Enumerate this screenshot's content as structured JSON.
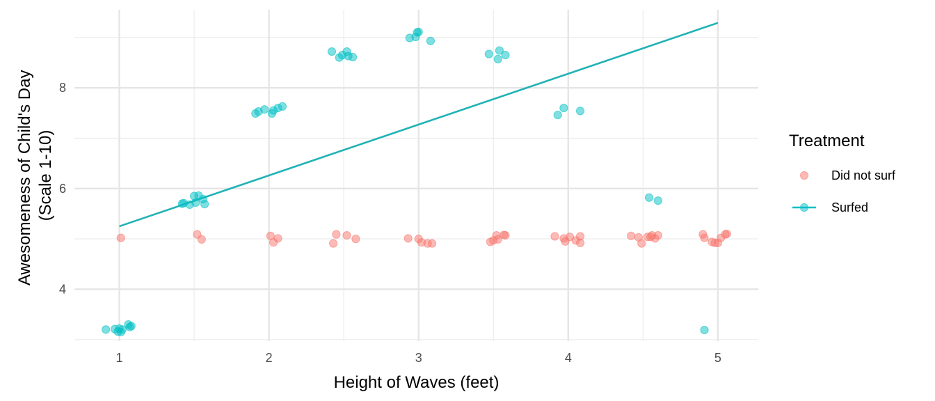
{
  "chart_data": {
    "type": "scatter",
    "xlabel": "Height of Waves (feet)",
    "ylabel": [
      "Awesomeness of Child's Day",
      "(Scale 1-10)"
    ],
    "xlim": [
      0.7,
      5.27
    ],
    "ylim": [
      2.97,
      9.55
    ],
    "x_ticks": [
      1,
      2,
      3,
      4,
      5
    ],
    "x_tick_labels": [
      "1",
      "2",
      "3",
      "4",
      "5"
    ],
    "y_ticks": [
      4,
      6,
      8
    ],
    "y_tick_labels": [
      "4",
      "6",
      "8"
    ],
    "grid": true,
    "legend": {
      "title": "Treatment",
      "position": "right",
      "entries": [
        {
          "label": "Did not surf",
          "color": "#F8766D",
          "marker": "point"
        },
        {
          "label": "Surfed",
          "color": "#00BFC4",
          "marker": "point+line"
        }
      ]
    },
    "series": [
      {
        "name": "Did not surf",
        "color": "#F8766D",
        "points": [
          [
            1.01,
            5.02
          ],
          [
            1.52,
            5.09
          ],
          [
            1.55,
            4.99
          ],
          [
            2.01,
            5.06
          ],
          [
            2.03,
            4.93
          ],
          [
            2.06,
            5.01
          ],
          [
            2.43,
            4.91
          ],
          [
            2.45,
            5.09
          ],
          [
            2.52,
            5.07
          ],
          [
            2.58,
            5.0
          ],
          [
            2.93,
            5.01
          ],
          [
            3.0,
            5.0
          ],
          [
            3.02,
            4.93
          ],
          [
            3.06,
            4.91
          ],
          [
            3.09,
            4.91
          ],
          [
            3.48,
            4.94
          ],
          [
            3.5,
            4.97
          ],
          [
            3.52,
            5.07
          ],
          [
            3.53,
            4.99
          ],
          [
            3.57,
            5.08
          ],
          [
            3.58,
            5.07
          ],
          [
            3.91,
            5.05
          ],
          [
            3.97,
            5.01
          ],
          [
            3.98,
            4.95
          ],
          [
            4.01,
            5.04
          ],
          [
            4.05,
            4.97
          ],
          [
            4.08,
            4.92
          ],
          [
            4.08,
            5.05
          ],
          [
            4.42,
            5.06
          ],
          [
            4.47,
            5.03
          ],
          [
            4.49,
            4.91
          ],
          [
            4.53,
            5.04
          ],
          [
            4.55,
            5.04
          ],
          [
            4.56,
            5.07
          ],
          [
            4.58,
            5.01
          ],
          [
            4.6,
            5.07
          ],
          [
            4.9,
            5.09
          ],
          [
            4.91,
            5.02
          ],
          [
            4.96,
            4.94
          ],
          [
            4.98,
            4.92
          ],
          [
            5.0,
            4.92
          ],
          [
            5.02,
            5.02
          ],
          [
            5.05,
            5.09
          ],
          [
            5.06,
            5.1
          ]
        ]
      },
      {
        "name": "Surfed",
        "color": "#00BFC4",
        "points": [
          [
            0.91,
            3.2
          ],
          [
            0.97,
            3.21
          ],
          [
            0.99,
            3.16
          ],
          [
            1.0,
            3.22
          ],
          [
            1.01,
            3.15
          ],
          [
            1.02,
            3.2
          ],
          [
            1.06,
            3.3
          ],
          [
            1.07,
            3.25
          ],
          [
            1.08,
            3.27
          ],
          [
            1.42,
            5.7
          ],
          [
            1.43,
            5.71
          ],
          [
            1.47,
            5.68
          ],
          [
            1.5,
            5.85
          ],
          [
            1.51,
            5.72
          ],
          [
            1.53,
            5.86
          ],
          [
            1.56,
            5.79
          ],
          [
            1.57,
            5.69
          ],
          [
            1.91,
            7.49
          ],
          [
            1.93,
            7.53
          ],
          [
            1.97,
            7.57
          ],
          [
            2.02,
            7.49
          ],
          [
            2.03,
            7.55
          ],
          [
            2.06,
            7.6
          ],
          [
            2.09,
            7.63
          ],
          [
            2.42,
            8.72
          ],
          [
            2.47,
            8.6
          ],
          [
            2.49,
            8.65
          ],
          [
            2.52,
            8.72
          ],
          [
            2.53,
            8.63
          ],
          [
            2.56,
            8.61
          ],
          [
            2.94,
            8.99
          ],
          [
            2.98,
            9.01
          ],
          [
            2.99,
            9.1
          ],
          [
            3.0,
            9.11
          ],
          [
            3.08,
            8.93
          ],
          [
            3.47,
            8.67
          ],
          [
            3.53,
            8.57
          ],
          [
            3.54,
            8.74
          ],
          [
            3.58,
            8.65
          ],
          [
            3.93,
            7.46
          ],
          [
            3.97,
            7.6
          ],
          [
            4.08,
            7.54
          ],
          [
            4.54,
            5.82
          ],
          [
            4.6,
            5.76
          ],
          [
            4.91,
            3.19
          ]
        ]
      }
    ],
    "fit_line": {
      "series": "Surfed",
      "color": "#20B2B5",
      "x": [
        1,
        5
      ],
      "y": [
        5.25,
        9.29
      ]
    }
  }
}
